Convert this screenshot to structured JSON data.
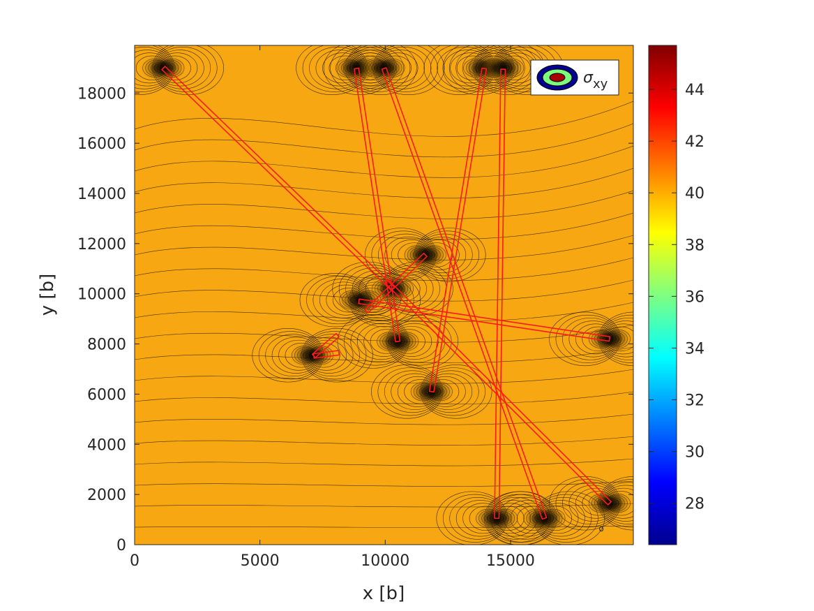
{
  "chart_data": {
    "type": "contour",
    "xlabel": "x [b]",
    "ylabel": "y [b]",
    "xlim": [
      0,
      19900
    ],
    "ylim": [
      0,
      19900
    ],
    "xticks": [
      0,
      5000,
      10000,
      15000
    ],
    "yticks": [
      0,
      2000,
      4000,
      6000,
      8000,
      10000,
      12000,
      14000,
      16000,
      18000
    ],
    "grid": false,
    "legend": {
      "label_symbol": "σ",
      "label_sub": "xy",
      "placement": "top-right"
    },
    "colorbar": {
      "colormap": "jet",
      "range": [
        26.4,
        45.7
      ],
      "ticks": [
        28,
        30,
        32,
        34,
        36,
        38,
        40,
        42,
        44
      ],
      "placement": "right"
    },
    "field_color": "#f6a711",
    "defect_color": "#ff1a1a",
    "defect_lines": [
      {
        "points": [
          [
            1150,
            19000
          ],
          [
            10300,
            10200
          ]
        ]
      },
      {
        "points": [
          [
            8850,
            18980
          ],
          [
            10500,
            8100
          ]
        ]
      },
      {
        "points": [
          [
            9950,
            18980
          ],
          [
            16350,
            1050
          ]
        ]
      },
      {
        "points": [
          [
            13950,
            18980
          ],
          [
            11850,
            6100
          ]
        ]
      },
      {
        "points": [
          [
            14700,
            18950
          ],
          [
            14450,
            1050
          ]
        ]
      },
      {
        "points": [
          [
            11600,
            11550
          ],
          [
            9250,
            9300
          ]
        ]
      },
      {
        "points": [
          [
            10050,
            10500
          ],
          [
            18950,
            1650
          ]
        ]
      },
      {
        "points": [
          [
            8950,
            9700
          ],
          [
            18950,
            8200
          ]
        ]
      },
      {
        "points": [
          [
            8100,
            8350
          ],
          [
            7150,
            7520
          ]
        ]
      },
      {
        "points": [
          [
            7150,
            7520
          ],
          [
            8150,
            7650
          ]
        ]
      }
    ],
    "dislocation_cores": [
      [
        1150,
        19000
      ],
      [
        8850,
        19000
      ],
      [
        9950,
        19000
      ],
      [
        13950,
        19000
      ],
      [
        14700,
        19000
      ],
      [
        11600,
        11550
      ],
      [
        10300,
        10200
      ],
      [
        9000,
        9750
      ],
      [
        10500,
        8100
      ],
      [
        7100,
        7550
      ],
      [
        11850,
        6100
      ],
      [
        18950,
        8200
      ],
      [
        14450,
        1050
      ],
      [
        16350,
        1050
      ],
      [
        18950,
        1650
      ]
    ],
    "contour_note": "o"
  }
}
